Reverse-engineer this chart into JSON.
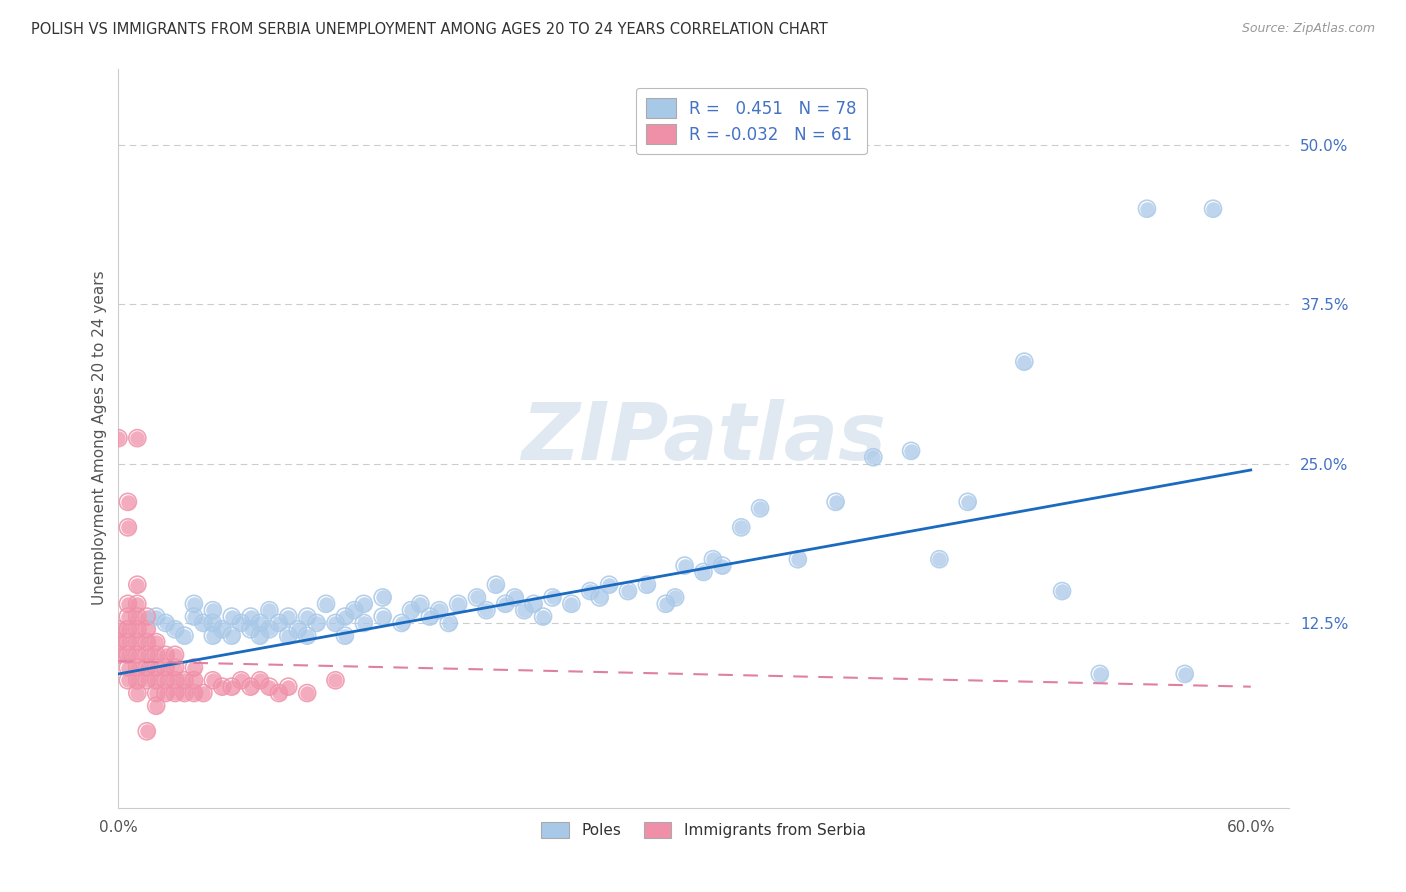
{
  "title": "POLISH VS IMMIGRANTS FROM SERBIA UNEMPLOYMENT AMONG AGES 20 TO 24 YEARS CORRELATION CHART",
  "source": "Source: ZipAtlas.com",
  "xlabel_poles": "Poles",
  "xlabel_serbia": "Immigrants from Serbia",
  "ylabel": "Unemployment Among Ages 20 to 24 years",
  "r_poles": 0.451,
  "n_poles": 78,
  "r_serbia": -0.032,
  "n_serbia": 61,
  "xlim": [
    0.0,
    0.62
  ],
  "ylim": [
    -0.02,
    0.56
  ],
  "color_poles": "#a8c8e8",
  "color_serbia": "#f090a8",
  "line_color_poles": "#1a6abf",
  "line_color_serbia": "#e080a0",
  "poles_x": [
    0.02,
    0.025,
    0.03,
    0.035,
    0.04,
    0.04,
    0.045,
    0.05,
    0.05,
    0.05,
    0.055,
    0.06,
    0.06,
    0.065,
    0.07,
    0.07,
    0.075,
    0.075,
    0.08,
    0.08,
    0.085,
    0.09,
    0.09,
    0.095,
    0.1,
    0.1,
    0.105,
    0.11,
    0.115,
    0.12,
    0.12,
    0.125,
    0.13,
    0.13,
    0.14,
    0.14,
    0.15,
    0.155,
    0.16,
    0.165,
    0.17,
    0.175,
    0.18,
    0.19,
    0.195,
    0.2,
    0.205,
    0.21,
    0.215,
    0.22,
    0.225,
    0.23,
    0.24,
    0.25,
    0.255,
    0.26,
    0.27,
    0.28,
    0.29,
    0.295,
    0.3,
    0.31,
    0.315,
    0.32,
    0.33,
    0.34,
    0.36,
    0.38,
    0.4,
    0.42,
    0.435,
    0.45,
    0.48,
    0.5,
    0.52,
    0.545,
    0.565,
    0.58
  ],
  "poles_y": [
    0.13,
    0.125,
    0.12,
    0.115,
    0.13,
    0.14,
    0.125,
    0.115,
    0.125,
    0.135,
    0.12,
    0.115,
    0.13,
    0.125,
    0.12,
    0.13,
    0.115,
    0.125,
    0.12,
    0.135,
    0.125,
    0.115,
    0.13,
    0.12,
    0.115,
    0.13,
    0.125,
    0.14,
    0.125,
    0.115,
    0.13,
    0.135,
    0.125,
    0.14,
    0.13,
    0.145,
    0.125,
    0.135,
    0.14,
    0.13,
    0.135,
    0.125,
    0.14,
    0.145,
    0.135,
    0.155,
    0.14,
    0.145,
    0.135,
    0.14,
    0.13,
    0.145,
    0.14,
    0.15,
    0.145,
    0.155,
    0.15,
    0.155,
    0.14,
    0.145,
    0.17,
    0.165,
    0.175,
    0.17,
    0.2,
    0.215,
    0.175,
    0.22,
    0.255,
    0.26,
    0.175,
    0.22,
    0.33,
    0.15,
    0.085,
    0.45,
    0.085,
    0.45
  ],
  "serbia_x": [
    0.0,
    0.0,
    0.0,
    0.0,
    0.005,
    0.005,
    0.005,
    0.005,
    0.005,
    0.005,
    0.005,
    0.005,
    0.005,
    0.01,
    0.01,
    0.01,
    0.01,
    0.01,
    0.01,
    0.01,
    0.01,
    0.01,
    0.01,
    0.015,
    0.015,
    0.015,
    0.015,
    0.015,
    0.015,
    0.015,
    0.02,
    0.02,
    0.02,
    0.02,
    0.02,
    0.02,
    0.025,
    0.025,
    0.025,
    0.025,
    0.03,
    0.03,
    0.03,
    0.03,
    0.035,
    0.035,
    0.04,
    0.04,
    0.04,
    0.045,
    0.05,
    0.055,
    0.06,
    0.065,
    0.07,
    0.075,
    0.08,
    0.085,
    0.09,
    0.1,
    0.115
  ],
  "serbia_y": [
    0.1,
    0.11,
    0.12,
    0.27,
    0.08,
    0.09,
    0.1,
    0.11,
    0.12,
    0.13,
    0.14,
    0.2,
    0.22,
    0.07,
    0.08,
    0.09,
    0.1,
    0.11,
    0.12,
    0.13,
    0.14,
    0.155,
    0.27,
    0.08,
    0.09,
    0.1,
    0.11,
    0.12,
    0.13,
    0.04,
    0.06,
    0.07,
    0.08,
    0.09,
    0.1,
    0.11,
    0.07,
    0.08,
    0.09,
    0.1,
    0.07,
    0.08,
    0.09,
    0.1,
    0.07,
    0.08,
    0.07,
    0.08,
    0.09,
    0.07,
    0.08,
    0.075,
    0.075,
    0.08,
    0.075,
    0.08,
    0.075,
    0.07,
    0.075,
    0.07,
    0.08
  ],
  "poles_line_x": [
    0.0,
    0.6
  ],
  "poles_line_y": [
    0.085,
    0.245
  ],
  "serbia_line_x": [
    0.0,
    0.6
  ],
  "serbia_line_y": [
    0.095,
    0.075
  ]
}
